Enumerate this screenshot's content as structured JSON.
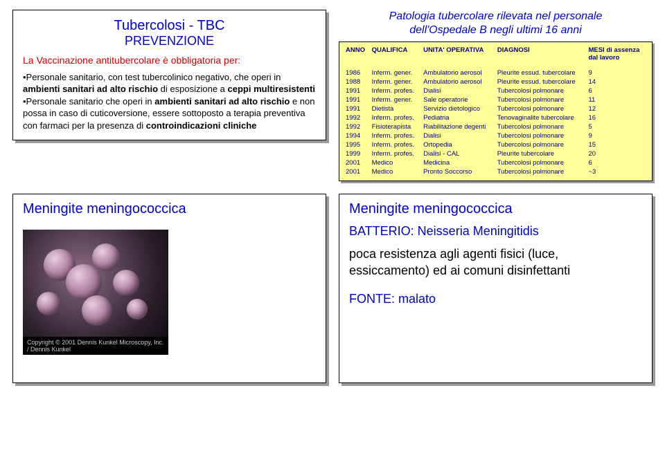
{
  "topLeft": {
    "title1": "Tubercolosi - TBC",
    "title2": "PREVENZIONE",
    "redline": "La  Vaccinazione antitubercolare è obbligatoria per:",
    "bullet1_pre": "•Personale sanitario, con test tubercolinico negativo, che operi in ",
    "bullet1_b1": "ambienti sanitari ad alto rischio",
    "bullet1_mid": " di esposizione a ",
    "bullet1_b2": "ceppi multiresistenti",
    "bullet2_pre": "•Personale sanitario che operi in ",
    "bullet2_b1": "ambienti sanitari ad alto rischio",
    "bullet2_mid": " e non possa in caso di cuticoversione, essere sottoposto a terapia preventiva con farmaci per la presenza di ",
    "bullet2_b2": "controindicazioni cliniche"
  },
  "topRight": {
    "titleLine1": "Patologia tubercolare rilevata nel personale",
    "titleLine2": "dell'Ospedale B negli ultimi 16 anni",
    "headers": {
      "anno": "ANNO",
      "qualifica": "QUALIFICA",
      "unita": "UNITA' OPERATIVA",
      "diagnosi": "DIAGNOSI",
      "mesi1": "MESI  di assenza",
      "mesi2": "dal lavoro"
    },
    "rows": [
      {
        "anno": "1986",
        "q": "Inferm. gener.",
        "u": "Ambulatorio aerosol",
        "d": "Pleurite essud. tubercolare",
        "m": "9"
      },
      {
        "anno": "1988",
        "q": "Inferm. gener.",
        "u": "Ambulatorio aerosol",
        "d": "Pleurite essud. tubercolare",
        "m": "14"
      },
      {
        "anno": "1991",
        "q": "Inferm. profes.",
        "u": "Dialisi",
        "d": "Tubercolosi polmonare",
        "m": "6"
      },
      {
        "anno": "1991",
        "q": "Inferm. gener.",
        "u": "Sale operatorie",
        "d": "Tubercolosi polmonare",
        "m": "11"
      },
      {
        "anno": "1991",
        "q": "Dietista",
        "u": "Servizio dietologico",
        "d": "Tubercolosi polmonare",
        "m": "12"
      },
      {
        "anno": "1992",
        "q": "Inferm. profes.",
        "u": "Pediatria",
        "d": "Tenovaginalite tubercolare",
        "m": "16"
      },
      {
        "anno": "1992",
        "q": "Fisioterapista",
        "u": "Riabilitazione degenti",
        "d": "Tubercolosi polmonare",
        "m": "5"
      },
      {
        "anno": "1994",
        "q": "Inferm. profes.",
        "u": "Dialisi",
        "d": "Tubercolosi polmonare",
        "m": "9"
      },
      {
        "anno": "1995",
        "q": "Inferm. profes.",
        "u": "Ortopedia",
        "d": "Tubercolosi polmonare",
        "m": "15"
      },
      {
        "anno": "1999",
        "q": "Inferm. profes.",
        "u": "Dialisi - CAL",
        "d": "Pleurite tubercolare",
        "m": "20"
      },
      {
        "anno": "2001",
        "q": "Medico",
        "u": "Medicina",
        "d": "Tubercolosi polmonare",
        "m": "6"
      },
      {
        "anno": "2001",
        "q": "Medico",
        "u": "Pronto Soccorso",
        "d": "Tubercolosi polmonare",
        "m": "~3"
      }
    ]
  },
  "bottomLeft": {
    "title": "Meningite meningococcica",
    "copyright": "Copyright © 2001 Dennis Kunkel Microscopy, Inc. / Dennis Kunkel"
  },
  "bottomRight": {
    "title": "Meningite meningococcica",
    "batterio": "BATTERIO: Neisseria Meningitidis",
    "body": "poca resistenza agli agenti fisici (luce, essiccamento) ed ai comuni disinfettanti",
    "fonte": "FONTE: malato"
  }
}
